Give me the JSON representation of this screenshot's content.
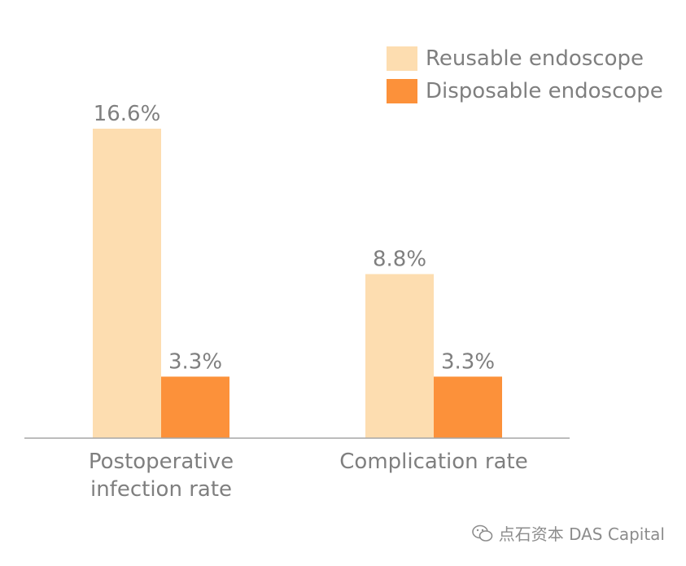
{
  "chart_data": {
    "type": "bar",
    "categories": [
      "Postoperative infection rate",
      "Complication rate"
    ],
    "series": [
      {
        "name": "Reusable endoscope",
        "values": [
          16.6,
          8.8
        ],
        "labels": [
          "16.6%",
          "8.8%"
        ],
        "color": "#FDDDB0"
      },
      {
        "name": "Disposable endoscope",
        "values": [
          3.3,
          3.3
        ],
        "labels": [
          "3.3%",
          "3.3%"
        ],
        "color": "#FC913A"
      }
    ],
    "category_labels": [
      [
        "Postoperative",
        "infection rate"
      ],
      [
        "Complication rate"
      ]
    ],
    "ylim": [
      0,
      20
    ],
    "legend_position": "top-right",
    "grid": false
  },
  "watermark": {
    "text": "点石资本 DAS Capital",
    "icon": "wechat-icon"
  }
}
